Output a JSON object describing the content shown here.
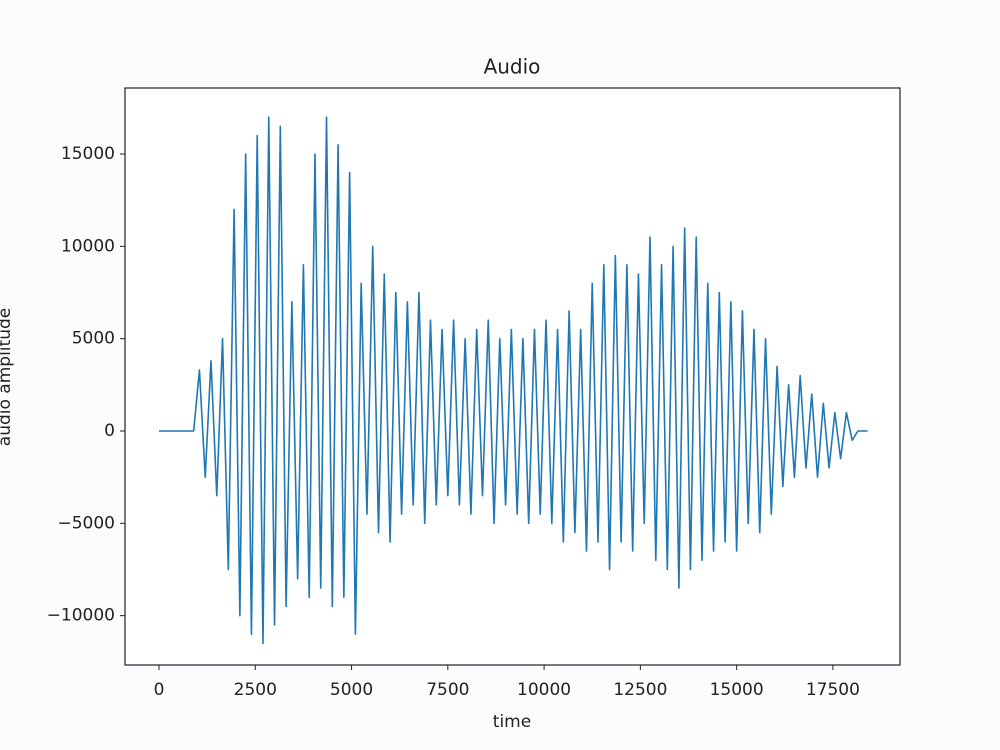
{
  "chart_data": {
    "type": "line",
    "title": "Audio",
    "x_label": "time",
    "y_label": "audio amplitude",
    "x": [
      0,
      900,
      1050,
      1200,
      1350,
      1500,
      1650,
      1800,
      1950,
      2100,
      2250,
      2400,
      2550,
      2700,
      2850,
      3000,
      3150,
      3300,
      3450,
      3600,
      3750,
      3900,
      4050,
      4200,
      4350,
      4500,
      4650,
      4800,
      4950,
      5100,
      5250,
      5400,
      5550,
      5700,
      5850,
      6000,
      6150,
      6300,
      6450,
      6600,
      6750,
      6900,
      7050,
      7200,
      7350,
      7500,
      7650,
      7800,
      7950,
      8100,
      8250,
      8400,
      8550,
      8700,
      8850,
      9000,
      9150,
      9300,
      9450,
      9600,
      9750,
      9900,
      10050,
      10200,
      10350,
      10500,
      10650,
      10800,
      10950,
      11100,
      11250,
      11400,
      11550,
      11700,
      11850,
      12000,
      12150,
      12300,
      12450,
      12600,
      12750,
      12900,
      13050,
      13200,
      13350,
      13500,
      13650,
      13800,
      13950,
      14100,
      14250,
      14400,
      14550,
      14700,
      14850,
      15000,
      15150,
      15300,
      15450,
      15600,
      15750,
      15900,
      16050,
      16200,
      16350,
      16500,
      16650,
      16800,
      16950,
      17100,
      17250,
      17400,
      17550,
      17700,
      17850,
      18000,
      18150,
      18400
    ],
    "values": [
      0,
      0,
      3300,
      -2500,
      3800,
      -3500,
      5000,
      -7500,
      12000,
      -10000,
      15000,
      -11000,
      16000,
      -11500,
      17000,
      -10500,
      16500,
      -9500,
      7000,
      -8000,
      9000,
      -9000,
      15000,
      -8500,
      17000,
      -9500,
      15500,
      -9000,
      14000,
      -11000,
      8000,
      -4500,
      10000,
      -5500,
      8500,
      -6000,
      7500,
      -4500,
      7000,
      -4000,
      7500,
      -5000,
      6000,
      -4000,
      5500,
      -3500,
      6000,
      -4000,
      5000,
      -4500,
      5500,
      -3500,
      6000,
      -5000,
      5000,
      -4000,
      5500,
      -4500,
      5000,
      -5000,
      5500,
      -4500,
      6000,
      -5000,
      5500,
      -6000,
      6500,
      -5500,
      5500,
      -6500,
      8000,
      -6000,
      9000,
      -7500,
      9500,
      -6000,
      9000,
      -6500,
      8500,
      -5000,
      10500,
      -7000,
      9000,
      -7500,
      10000,
      -8500,
      11000,
      -7500,
      10500,
      -7000,
      8000,
      -6500,
      7500,
      -6000,
      7000,
      -6500,
      6500,
      -5000,
      5500,
      -5500,
      5000,
      -4500,
      3500,
      -3000,
      2500,
      -2500,
      3000,
      -2000,
      2000,
      -2500,
      1500,
      -2000,
      1000,
      -1500,
      1000,
      -500,
      0,
      0
    ],
    "color": "#1f77b4",
    "xlim": [
      -883,
      19242
    ],
    "xticks": [
      0,
      2500,
      5000,
      7500,
      10000,
      12500,
      15000,
      17500
    ],
    "ylim": [
      -12671,
      18574
    ],
    "yticks": [
      {
        "value": -10000,
        "label": "−10000"
      },
      {
        "value": -5000,
        "label": "−5000"
      },
      0,
      5000,
      10000,
      15000
    ],
    "grid": false
  }
}
